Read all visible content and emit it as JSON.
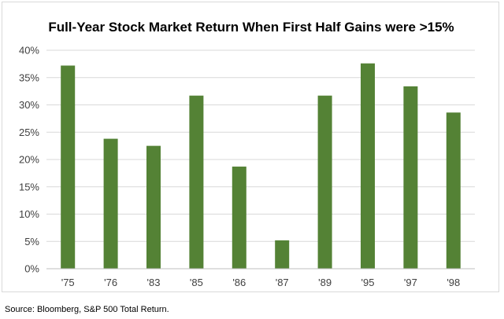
{
  "chart_data": {
    "type": "bar",
    "title": "Full-Year Stock Market Return When First Half Gains were >15%",
    "categories": [
      "'75",
      "'76",
      "'83",
      "'85",
      "'86",
      "'87",
      "'89",
      "'95",
      "'97",
      "'98"
    ],
    "values": [
      37.2,
      23.8,
      22.5,
      31.7,
      18.7,
      5.2,
      31.7,
      37.6,
      33.4,
      28.6
    ],
    "ylim": [
      0,
      40
    ],
    "yticks": [
      0,
      5,
      10,
      15,
      20,
      25,
      30,
      35,
      40
    ],
    "ytick_suffix": "%",
    "grid": true,
    "legend": "none",
    "bar_color": "#548235",
    "grid_color": "#d9d9d9",
    "axis_color": "#bfbfbf",
    "tick_label_color": "#404040"
  },
  "source_note": "Source: Bloomberg, S&P 500 Total Return."
}
